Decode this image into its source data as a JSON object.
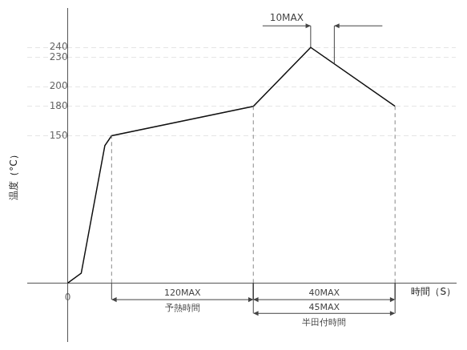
{
  "chart_data": {
    "type": "line",
    "x": [
      0,
      0.4,
      1.1,
      1.3,
      5.5,
      7.2,
      9.7
    ],
    "values": [
      0,
      10,
      140,
      150,
      180,
      240,
      180
    ],
    "color": "#111111",
    "xlabel": "時間（S）",
    "ylabel": "温度（°C）",
    "xlim": [
      -1.2,
      11.5
    ],
    "ylim": [
      -60,
      280
    ],
    "xticks": [
      0
    ],
    "yticks": [
      150,
      180,
      200,
      230,
      240
    ],
    "grid": true,
    "annotations": [
      {
        "text": "120MAX",
        "x": [
          1.3,
          5.5
        ]
      },
      {
        "text": "予熱時間",
        "x": [
          1.3,
          5.5
        ]
      },
      {
        "text": "40MAX",
        "x": [
          5.5,
          9.7
        ]
      },
      {
        "text": "45MAX",
        "x": [
          5.5,
          9.7
        ]
      },
      {
        "text": "半田付時間",
        "x": [
          5.5,
          9.7
        ]
      },
      {
        "text": "10MAX",
        "x": [
          7.2,
          7.9
        ]
      }
    ]
  }
}
